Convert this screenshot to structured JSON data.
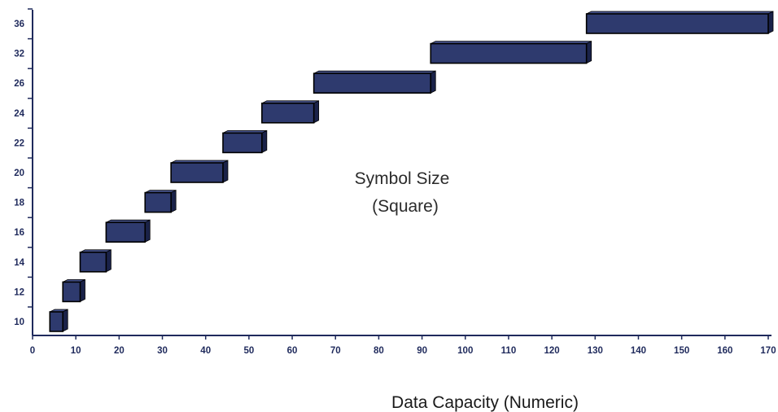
{
  "chart_data": {
    "type": "bar",
    "subtype": "floating-horizontal-range",
    "xlabel": "Data Capacity (Numeric)",
    "ylabel": "",
    "xlim": [
      0,
      170
    ],
    "x_ticks": [
      "0",
      "10",
      "20",
      "30",
      "40",
      "50",
      "60",
      "70",
      "80",
      "90",
      "100",
      "110",
      "120",
      "130",
      "140",
      "150",
      "160",
      "170"
    ],
    "y_ticks": [
      "10",
      "12",
      "14",
      "16",
      "18",
      "20",
      "22",
      "24",
      "26",
      "32",
      "36"
    ],
    "annotation": [
      "Symbol Size",
      "(Square)"
    ],
    "bar_color": "#2e3a6e",
    "bar_side_color": "#1a2249",
    "bar_top_color": "#46538c",
    "grid": false,
    "legend": "none",
    "series": [
      {
        "values": [
          {
            "category": "10",
            "start": 4,
            "end": 7
          },
          {
            "category": "12",
            "start": 7,
            "end": 11
          },
          {
            "category": "14",
            "start": 11,
            "end": 17
          },
          {
            "category": "16",
            "start": 17,
            "end": 26
          },
          {
            "category": "18",
            "start": 26,
            "end": 32
          },
          {
            "category": "20",
            "start": 32,
            "end": 44
          },
          {
            "category": "22",
            "start": 44,
            "end": 53
          },
          {
            "category": "24",
            "start": 53,
            "end": 65
          },
          {
            "category": "26",
            "start": 65,
            "end": 92
          },
          {
            "category": "32",
            "start": 92,
            "end": 128
          },
          {
            "category": "36",
            "start": 128,
            "end": 170
          }
        ]
      }
    ]
  }
}
